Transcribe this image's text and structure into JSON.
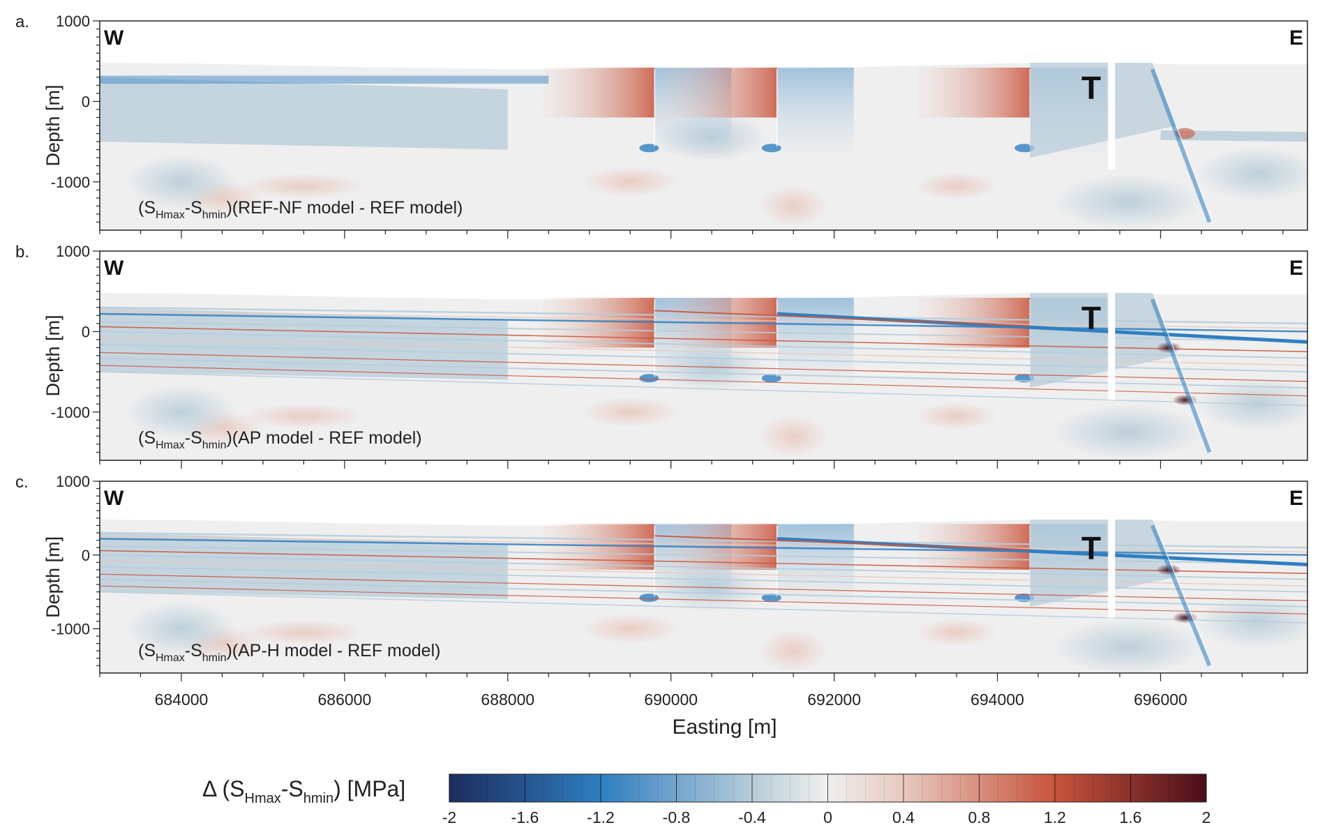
{
  "chart_data": [
    {
      "type": "heatmap",
      "panel_label": "a.",
      "west_label": "W",
      "east_label": "E",
      "marker_label": "T",
      "ylabel": "Depth [m]",
      "yticks": [
        1000,
        0,
        -1000
      ],
      "annotation_prefix": "(S",
      "annotation_sub1": "Hmax",
      "annotation_mid": "-S",
      "annotation_sub2": "hmin",
      "annotation_suffix": ")(REF-NF model - REF model)",
      "stratified": false
    },
    {
      "type": "heatmap",
      "panel_label": "b.",
      "west_label": "W",
      "east_label": "E",
      "marker_label": "T",
      "ylabel": "Depth [m]",
      "yticks": [
        1000,
        0,
        -1000
      ],
      "annotation_prefix": "(S",
      "annotation_sub1": "Hmax",
      "annotation_mid": "-S",
      "annotation_sub2": "hmin",
      "annotation_suffix": ")(AP model - REF model)",
      "stratified": true
    },
    {
      "type": "heatmap",
      "panel_label": "c.",
      "west_label": "W",
      "east_label": "E",
      "marker_label": "T",
      "ylabel": "Depth [m]",
      "yticks": [
        1000,
        0,
        -1000
      ],
      "annotation_prefix": "(S",
      "annotation_sub1": "Hmax",
      "annotation_mid": "-S",
      "annotation_sub2": "hmin",
      "annotation_suffix": ")(AP-H model - REF model)",
      "stratified": true
    }
  ],
  "axes": {
    "xlim": [
      683000,
      697800
    ],
    "ylim": [
      -1600,
      1000
    ],
    "xticks": [
      684000,
      686000,
      688000,
      690000,
      692000,
      694000,
      696000
    ],
    "xtick_labels": [
      "684000",
      "686000",
      "688000",
      "690000",
      "692000",
      "694000",
      "696000"
    ],
    "xlabel": "Easting [m]",
    "fault_eastings": [
      689800,
      691300,
      694400
    ],
    "gap_easting": 695400,
    "inclined_fault": {
      "from": [
        695900,
        400
      ],
      "to": [
        696600,
        -1500
      ]
    }
  },
  "colorbar": {
    "title_prefix": "Δ (S",
    "title_sub1": "Hmax",
    "title_mid": "-S",
    "title_sub2": "hmin",
    "title_suffix": ") [MPa]",
    "range": [
      -2,
      2
    ],
    "ticks": [
      -2,
      -1.6,
      -1.2,
      -0.8,
      -0.4,
      0,
      0.4,
      0.8,
      1.2,
      1.6,
      2
    ],
    "tick_labels": [
      "-2",
      "-1.6",
      "-1.2",
      "-0.8",
      "-0.4",
      "0",
      "0.4",
      "0.8",
      "1.2",
      "1.6",
      "2"
    ],
    "colors": {
      "neg_max": "#1c2c5e",
      "neg_mid": "#2f7fc1",
      "neg_low": "#b7ccd9",
      "neutral": "#efefef",
      "pos_low": "#e8c9bf",
      "pos_mid": "#c8543c",
      "pos_max": "#4a0e1a"
    }
  }
}
